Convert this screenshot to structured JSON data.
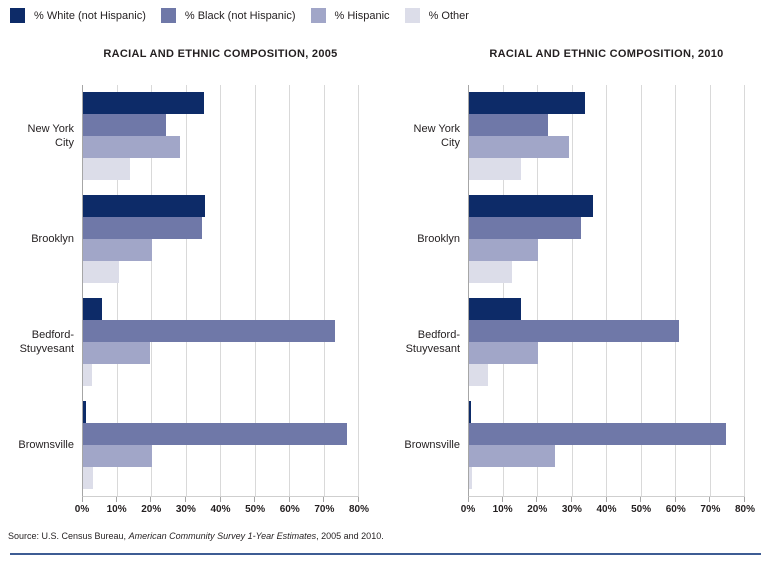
{
  "legend": {
    "items": [
      {
        "label": "% White (not Hispanic)",
        "color": "#0d2b68"
      },
      {
        "label": "% Black (not Hispanic)",
        "color": "#6f78a8"
      },
      {
        "label": "% Hispanic",
        "color": "#a1a6c8"
      },
      {
        "label": "% Other",
        "color": "#dcdde9"
      }
    ]
  },
  "chart_data": [
    {
      "type": "bar",
      "orientation": "horizontal",
      "title": "RACIAL AND ETHNIC COMPOSITION, 2005",
      "categories": [
        "New York City",
        "Brooklyn",
        "Bedford-Stuyvesant",
        "Brownsville"
      ],
      "series": [
        {
          "name": "% White (not Hispanic)",
          "color": "#0d2b68",
          "values": [
            35,
            35.5,
            5.5,
            1
          ]
        },
        {
          "name": "% Black (not Hispanic)",
          "color": "#6f78a8",
          "values": [
            24,
            34.5,
            73,
            76.5
          ]
        },
        {
          "name": "% Hispanic",
          "color": "#a1a6c8",
          "values": [
            28,
            20,
            19.5,
            20
          ]
        },
        {
          "name": "% Other",
          "color": "#dcdde9",
          "values": [
            13.5,
            10.5,
            2.5,
            3
          ]
        }
      ],
      "xlim": [
        0,
        80
      ],
      "xticks": [
        "0%",
        "10%",
        "20%",
        "30%",
        "40%",
        "50%",
        "60%",
        "70%",
        "80%"
      ],
      "grid": "vertical",
      "legend_position": "top"
    },
    {
      "type": "bar",
      "orientation": "horizontal",
      "title": "RACIAL AND ETHNIC COMPOSITION, 2010",
      "categories": [
        "New York City",
        "Brooklyn",
        "Bedford-Stuyvesant",
        "Brownsville"
      ],
      "series": [
        {
          "name": "% White (not Hispanic)",
          "color": "#0d2b68",
          "values": [
            33.5,
            36,
            15,
            0.5
          ]
        },
        {
          "name": "% Black (not Hispanic)",
          "color": "#6f78a8",
          "values": [
            23,
            32.5,
            61,
            74.5
          ]
        },
        {
          "name": "% Hispanic",
          "color": "#a1a6c8",
          "values": [
            29,
            20,
            20,
            25
          ]
        },
        {
          "name": "% Other",
          "color": "#dcdde9",
          "values": [
            15,
            12.5,
            5.5,
            1
          ]
        }
      ],
      "xlim": [
        0,
        80
      ],
      "xticks": [
        "0%",
        "10%",
        "20%",
        "30%",
        "40%",
        "50%",
        "60%",
        "70%",
        "80%"
      ],
      "grid": "vertical",
      "legend_position": "top"
    }
  ],
  "source": {
    "prefix": "Source: U.S. Census Bureau, ",
    "italic": "American Community Survey 1-Year Estimates",
    "suffix": ", 2005 and 2010."
  },
  "colors": {
    "rule": "#3e5c94",
    "gridline": "#d9d9d9",
    "axis": "#a6a6a6",
    "text": "#231f20"
  }
}
